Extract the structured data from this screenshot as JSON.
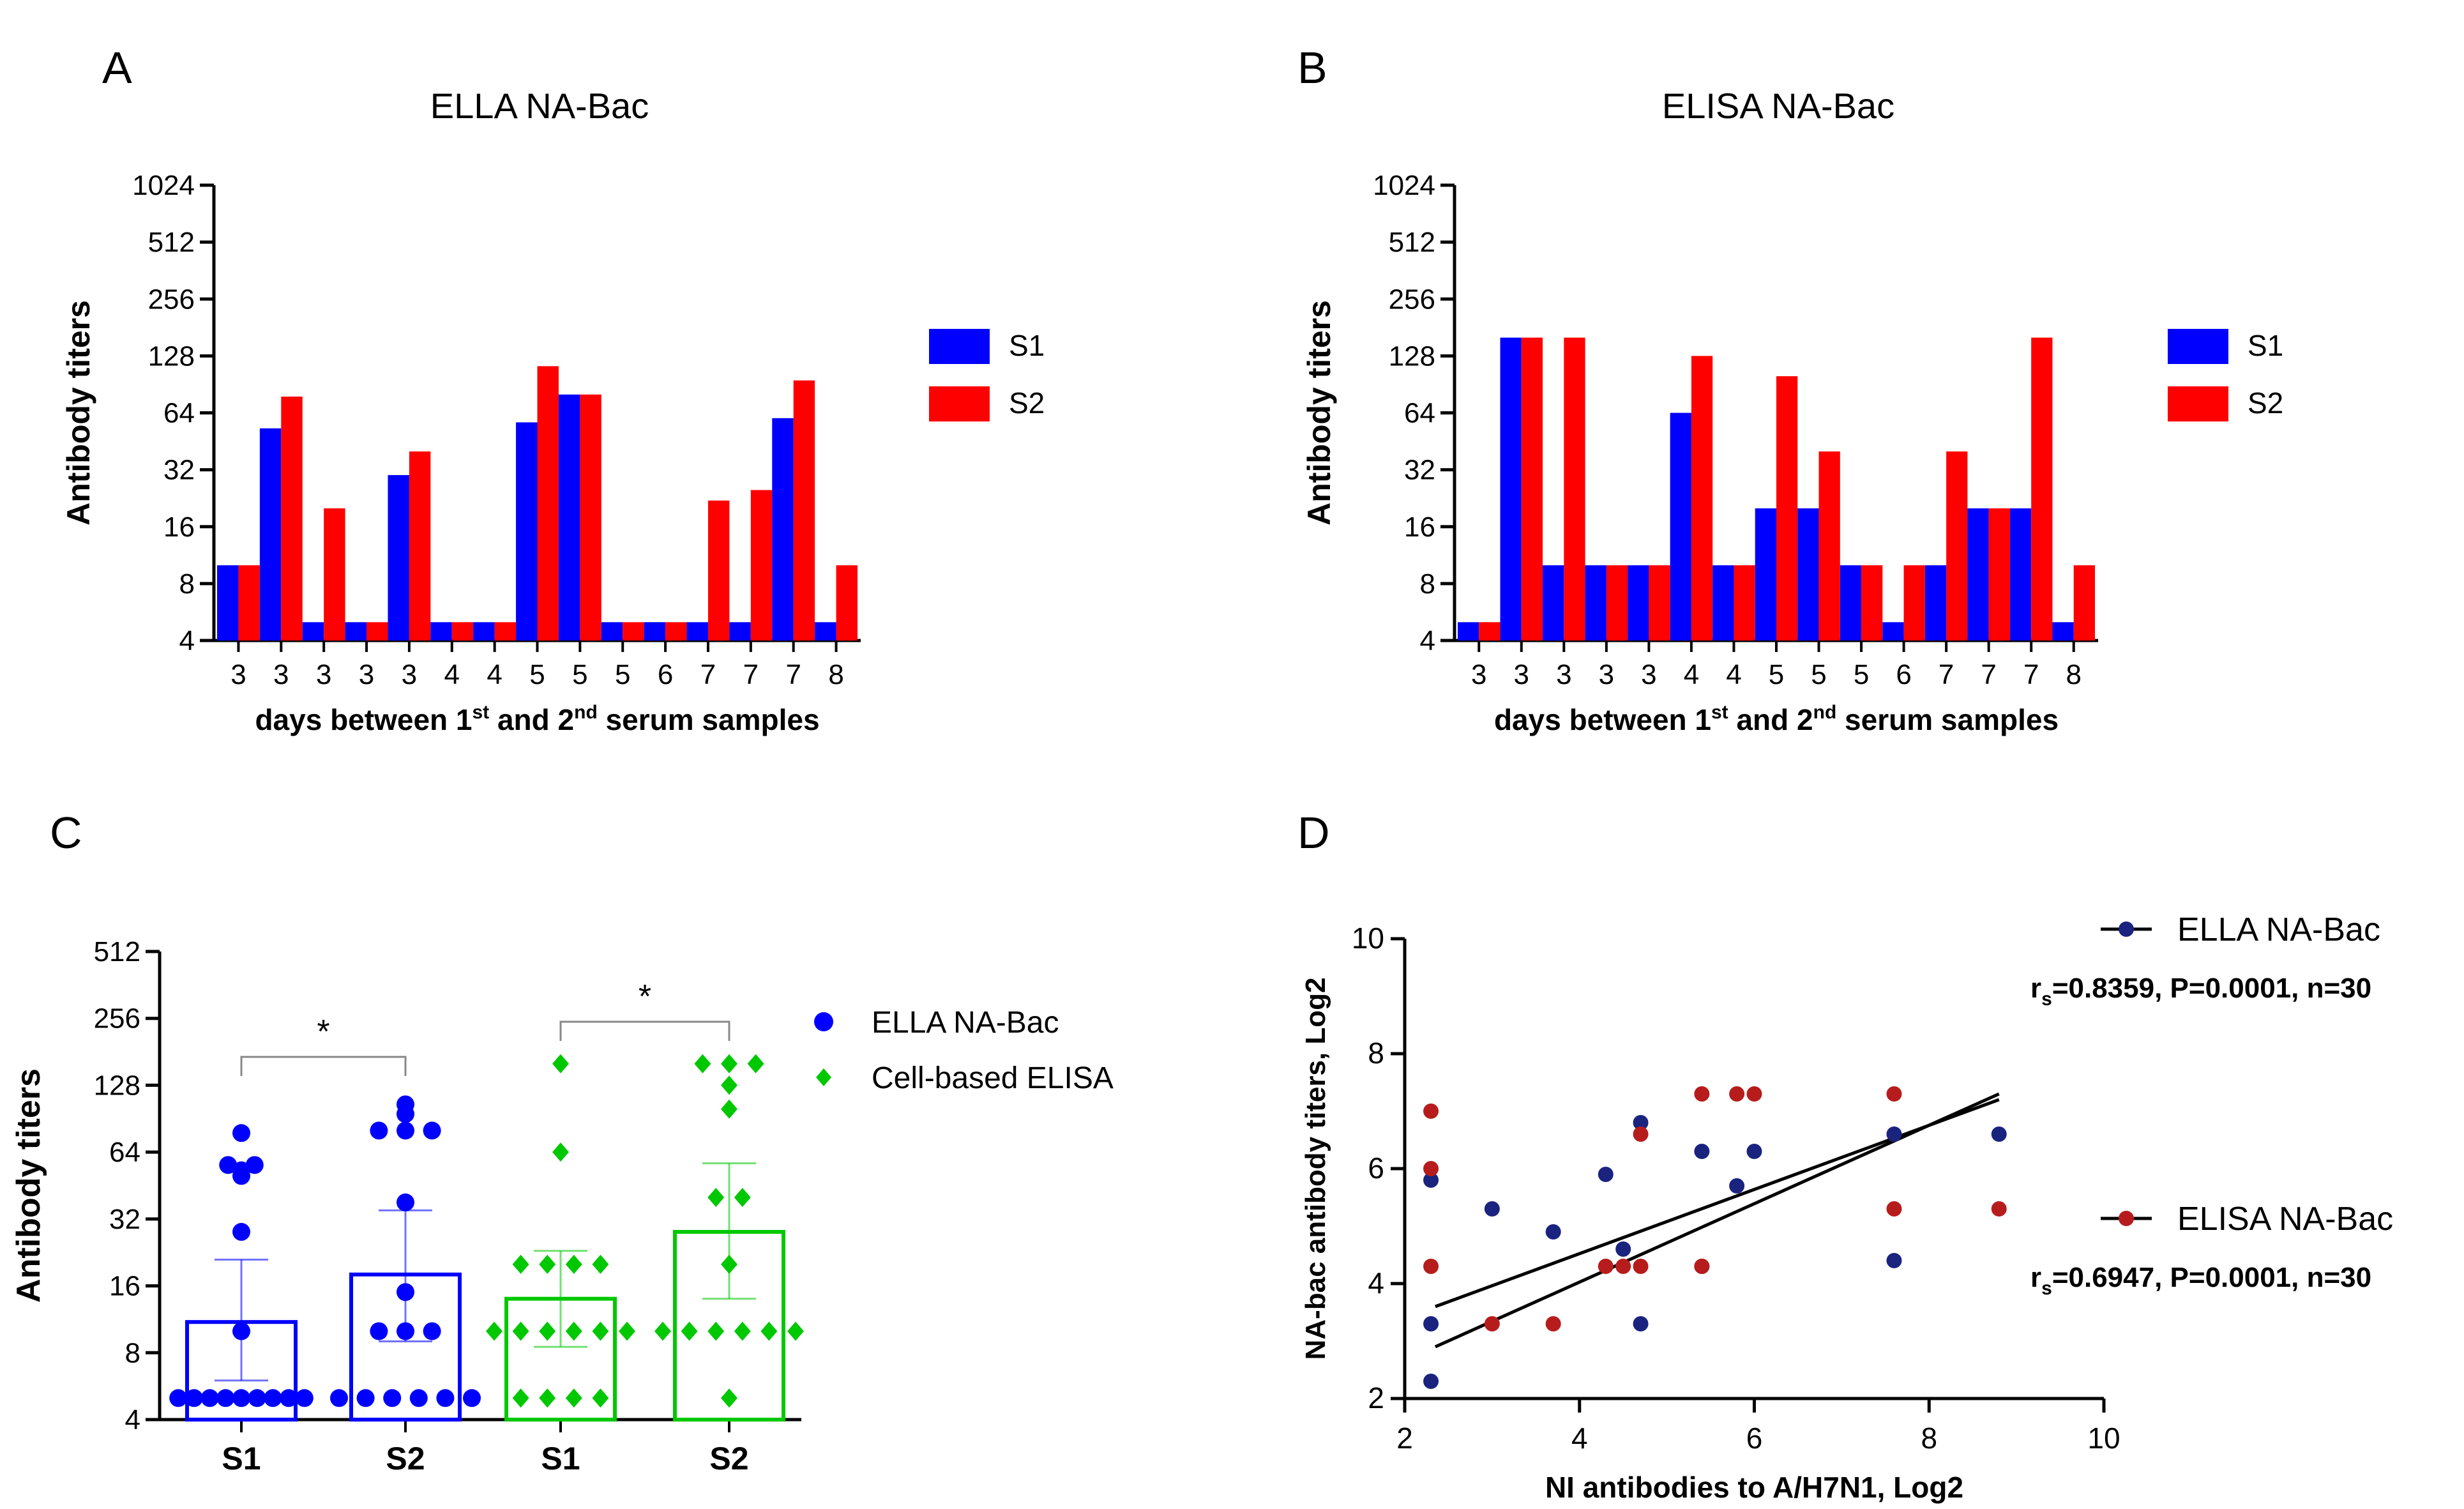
{
  "panels": {
    "A": {
      "letter": "A"
    },
    "B": {
      "letter": "B"
    },
    "C": {
      "letter": "C"
    },
    "D": {
      "letter": "D"
    }
  },
  "chart_data": [
    {
      "id": "A",
      "type": "bar",
      "title": "ELLA NA-Bac",
      "ylabel": "Antibody titers",
      "xlabel_parts": [
        "days between 1",
        "st",
        " and 2",
        "nd",
        " serum samples"
      ],
      "yscale": "log2",
      "yticks": [
        "4",
        "8",
        "16",
        "32",
        "64",
        "128",
        "256",
        "512",
        "1024"
      ],
      "ylim": [
        4,
        1024
      ],
      "categories": [
        "3",
        "3",
        "3",
        "3",
        "3",
        "4",
        "4",
        "5",
        "5",
        "5",
        "6",
        "7",
        "7",
        "7",
        "8"
      ],
      "series": [
        {
          "name": "S1",
          "color": "#0000ff",
          "values": [
            10,
            53,
            5,
            5,
            30,
            5,
            5,
            57,
            80,
            5,
            5,
            5,
            5,
            60,
            5
          ]
        },
        {
          "name": "S2",
          "color": "#ff0000",
          "values": [
            10,
            78,
            20,
            5,
            40,
            5,
            5,
            113,
            80,
            5,
            5,
            22,
            25,
            95,
            10
          ]
        }
      ],
      "legend_position": "right"
    },
    {
      "id": "B",
      "type": "bar",
      "title": "ELISA NA-Bac",
      "ylabel": "Antibody titers",
      "xlabel_parts": [
        "days between 1",
        "st",
        " and 2",
        "nd",
        " serum samples"
      ],
      "yscale": "log2",
      "yticks": [
        "4",
        "8",
        "16",
        "32",
        "64",
        "128",
        "256",
        "512",
        "1024"
      ],
      "ylim": [
        4,
        1024
      ],
      "categories": [
        "3",
        "3",
        "3",
        "3",
        "3",
        "4",
        "4",
        "5",
        "5",
        "5",
        "6",
        "7",
        "7",
        "7",
        "8"
      ],
      "series": [
        {
          "name": "S1",
          "color": "#0000ff",
          "values": [
            5,
            160,
            10,
            10,
            10,
            64,
            10,
            20,
            20,
            10,
            5,
            10,
            20,
            20,
            5
          ]
        },
        {
          "name": "S2",
          "color": "#ff0000",
          "values": [
            5,
            160,
            160,
            10,
            10,
            128,
            10,
            100,
            40,
            10,
            10,
            40,
            20,
            160,
            10
          ]
        }
      ],
      "legend_position": "right"
    },
    {
      "id": "C",
      "type": "scatter",
      "ylabel": "Antibody titers",
      "yscale": "log2",
      "yticks": [
        "4",
        "8",
        "16",
        "32",
        "64",
        "128",
        "256",
        "512"
      ],
      "ylim": [
        4,
        512
      ],
      "categories": [
        "S1",
        "S2",
        "S1",
        "S2"
      ],
      "groups": [
        {
          "series": "ELLA NA-Bac",
          "label": "S1",
          "mean": 11,
          "err_low": 6,
          "err_high": 21,
          "points": [
            5,
            5,
            5,
            5,
            5,
            5,
            5,
            5,
            5,
            10,
            28,
            50,
            53,
            56,
            56,
            78
          ]
        },
        {
          "series": "ELLA NA-Bac",
          "label": "S2",
          "mean": 18,
          "err_low": 9,
          "err_high": 35,
          "points": [
            5,
            5,
            5,
            5,
            5,
            10,
            10,
            15,
            38,
            80,
            80,
            95,
            105,
            80,
            5,
            10
          ]
        },
        {
          "series": "Cell-based ELISA",
          "label": "S1",
          "mean": 14,
          "err_low": 8.5,
          "err_high": 23,
          "points": [
            5,
            5,
            5,
            5,
            10,
            10,
            10,
            10,
            10,
            10,
            20,
            20,
            20,
            20,
            64,
            160
          ]
        },
        {
          "series": "Cell-based ELISA",
          "label": "S2",
          "mean": 28,
          "err_low": 14,
          "err_high": 57,
          "points": [
            5,
            10,
            10,
            10,
            10,
            10,
            10,
            20,
            40,
            40,
            100,
            160,
            160,
            160,
            128
          ]
        }
      ],
      "significance": [
        {
          "between": [
            0,
            1
          ],
          "label": "*"
        },
        {
          "between": [
            2,
            3
          ],
          "label": "*"
        }
      ],
      "legend": [
        {
          "name": "ELLA NA-Bac",
          "color": "#0000ff",
          "marker": "circle"
        },
        {
          "name": "Cell-based ELISA",
          "color": "#00c800",
          "marker": "diamond"
        }
      ],
      "legend_position": "right"
    },
    {
      "id": "D",
      "type": "scatter",
      "xlabel": "NI antibodies to A/H7N1, Log2",
      "ylabel": "NA-bac antibody titers, Log2",
      "xlim": [
        2,
        10
      ],
      "ylim": [
        2,
        10
      ],
      "xticks": [
        "2",
        "4",
        "6",
        "8",
        "10"
      ],
      "yticks": [
        "2",
        "4",
        "6",
        "8",
        "10"
      ],
      "series": [
        {
          "name": "ELLA NA-Bac",
          "color": "#1a237e",
          "stat": [
            "r",
            "s",
            "=0.8359, P=0.0001, n=30"
          ],
          "fit": {
            "x1": 2.35,
            "y1": 3.6,
            "x2": 8.8,
            "y2": 7.2
          },
          "points": [
            [
              2.3,
              5.8
            ],
            [
              2.3,
              3.3
            ],
            [
              2.3,
              2.3
            ],
            [
              3.0,
              5.3
            ],
            [
              3.7,
              4.9
            ],
            [
              4.3,
              5.9
            ],
            [
              4.5,
              4.6
            ],
            [
              4.7,
              6.8
            ],
            [
              4.7,
              3.3
            ],
            [
              5.4,
              6.3
            ],
            [
              5.4,
              4.3
            ],
            [
              5.8,
              5.7
            ],
            [
              6.0,
              6.3
            ],
            [
              7.6,
              6.6
            ],
            [
              7.6,
              4.4
            ],
            [
              8.8,
              6.6
            ]
          ]
        },
        {
          "name": "ELISA NA-Bac",
          "color": "#b71c1c",
          "stat": [
            "r",
            "s",
            "=0.6947, P=0.0001, n=30"
          ],
          "fit": {
            "x1": 2.35,
            "y1": 2.9,
            "x2": 8.8,
            "y2": 7.3
          },
          "points": [
            [
              2.3,
              7.0
            ],
            [
              2.3,
              6.0
            ],
            [
              2.3,
              4.3
            ],
            [
              3.0,
              3.3
            ],
            [
              3.7,
              3.3
            ],
            [
              4.3,
              4.3
            ],
            [
              4.5,
              4.3
            ],
            [
              4.7,
              4.3
            ],
            [
              4.7,
              6.6
            ],
            [
              5.4,
              7.3
            ],
            [
              5.4,
              4.3
            ],
            [
              5.8,
              7.3
            ],
            [
              6.0,
              7.3
            ],
            [
              7.6,
              7.3
            ],
            [
              7.6,
              5.3
            ],
            [
              8.8,
              5.3
            ]
          ]
        }
      ],
      "legend_position": "right"
    }
  ]
}
